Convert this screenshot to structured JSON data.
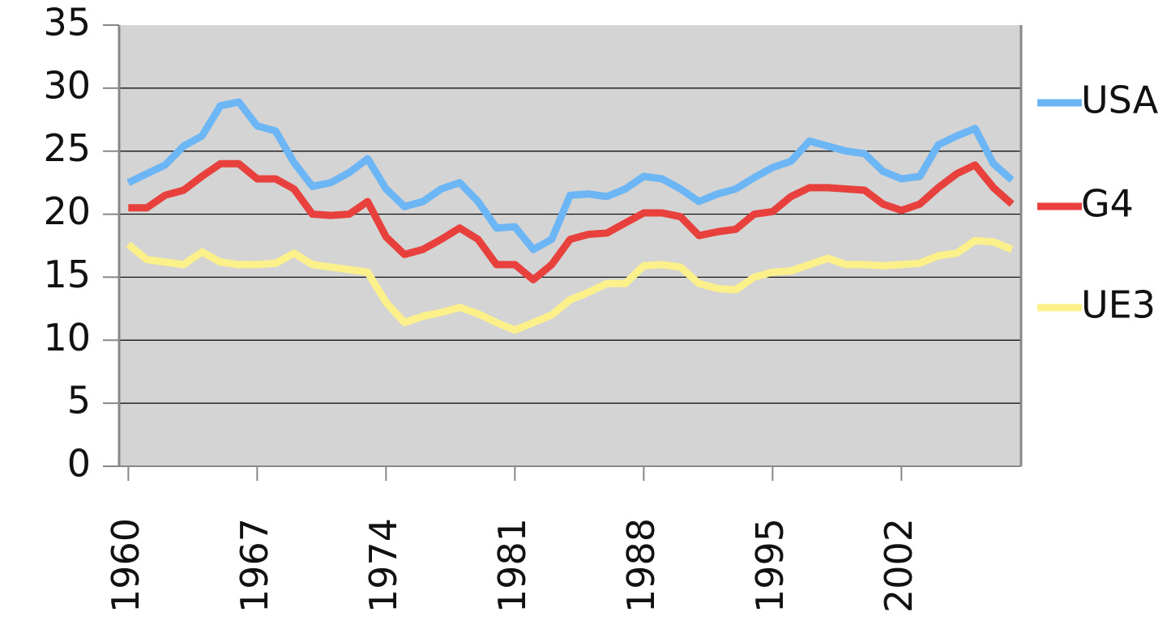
{
  "chart_data": {
    "type": "line",
    "x": [
      1960,
      1961,
      1962,
      1963,
      1964,
      1965,
      1966,
      1967,
      1968,
      1969,
      1970,
      1971,
      1972,
      1973,
      1974,
      1975,
      1976,
      1977,
      1978,
      1979,
      1980,
      1981,
      1982,
      1983,
      1984,
      1985,
      1986,
      1987,
      1988,
      1989,
      1990,
      1991,
      1992,
      1993,
      1994,
      1995,
      1996,
      1997,
      1998,
      1999,
      2000,
      2001,
      2002,
      2003,
      2004,
      2005,
      2006,
      2007,
      2008
    ],
    "xlim": [
      1959.5,
      2008.5
    ],
    "xticks": [
      1960,
      1967,
      1974,
      1981,
      1988,
      1995,
      2002
    ],
    "ylim": [
      0,
      35
    ],
    "yticks": [
      0,
      5,
      10,
      15,
      20,
      25,
      30,
      35
    ],
    "grid": true,
    "legend": "right",
    "series": [
      {
        "name": "USA",
        "color": "#6cb6f5",
        "values": [
          22.5,
          23.2,
          23.9,
          25.4,
          26.2,
          28.6,
          28.9,
          27.0,
          26.6,
          24.1,
          22.2,
          22.5,
          23.3,
          24.4,
          22.0,
          20.6,
          21.0,
          22.0,
          22.5,
          21.0,
          18.9,
          19.0,
          17.2,
          18.0,
          21.5,
          21.6,
          21.4,
          22.0,
          23.0,
          22.8,
          22.0,
          21.0,
          21.6,
          22.0,
          22.9,
          23.7,
          24.2,
          25.8,
          25.4,
          25.0,
          24.8,
          23.4,
          22.8,
          23.0,
          25.5,
          26.2,
          26.8,
          24.0,
          22.7
        ]
      },
      {
        "name": "G4",
        "color": "#e8403c",
        "values": [
          20.5,
          20.5,
          21.5,
          21.9,
          23.0,
          24.0,
          24.0,
          22.8,
          22.8,
          22.0,
          20.0,
          19.9,
          20.0,
          21.0,
          18.2,
          16.8,
          17.2,
          18.0,
          18.9,
          18.0,
          16.0,
          16.0,
          14.8,
          16.0,
          18.0,
          18.4,
          18.5,
          19.3,
          20.1,
          20.1,
          19.8,
          18.3,
          18.6,
          18.8,
          20.0,
          20.2,
          21.4,
          22.1,
          22.1,
          22.0,
          21.9,
          20.8,
          20.3,
          20.8,
          22.1,
          23.2,
          23.9,
          22.1,
          20.8
        ]
      },
      {
        "name": "UE3",
        "color": "#fbf08a",
        "values": [
          17.6,
          16.4,
          16.2,
          16.0,
          17.0,
          16.2,
          16.0,
          16.0,
          16.1,
          16.9,
          16.0,
          15.8,
          15.6,
          15.4,
          13.0,
          11.4,
          11.9,
          12.2,
          12.6,
          12.1,
          11.4,
          10.8,
          11.4,
          12.0,
          13.2,
          13.8,
          14.5,
          14.5,
          15.9,
          16.0,
          15.8,
          14.5,
          14.1,
          14.0,
          15.0,
          15.4,
          15.5,
          16.0,
          16.5,
          16.0,
          16.0,
          15.9,
          16.0,
          16.1,
          16.7,
          16.9,
          17.9,
          17.8,
          17.2
        ]
      }
    ]
  }
}
